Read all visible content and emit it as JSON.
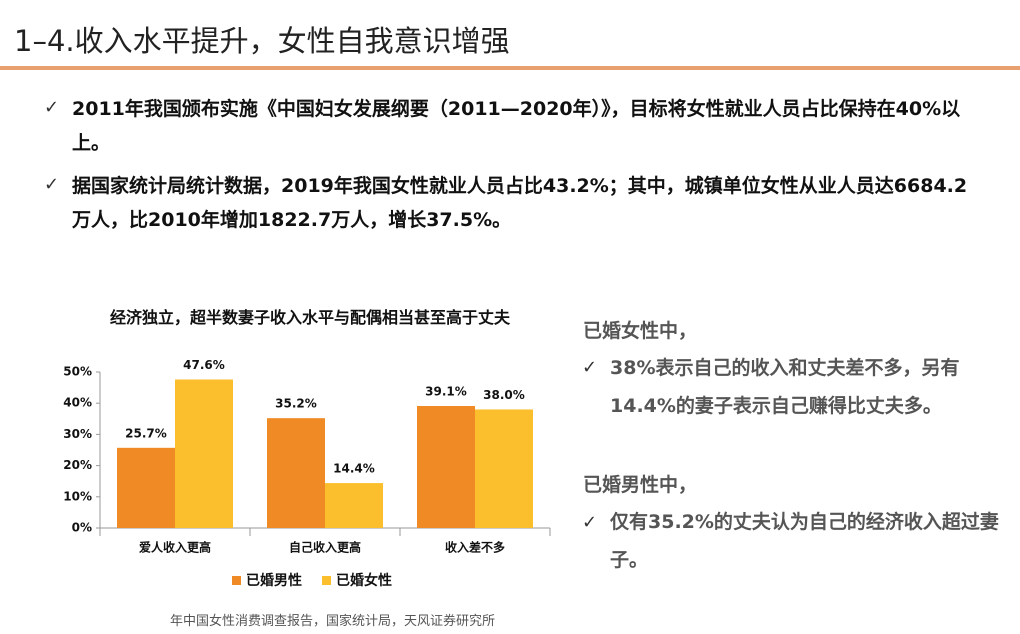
{
  "header": {
    "title": "1–4.收入水平提升，女性自我意识增强"
  },
  "bullets": [
    "2011年我国颁布实施《中国妇女发展纲要（2011—2020年）》，目标将女性就业人员占比保持在40%以上。",
    "据国家统计局统计数据，2019年我国女性就业人员占比43.2%；其中，城镇单位女性从业人员达6684.2万人，比2010年增加1822.7万人，增长37.5%。"
  ],
  "chart_data": {
    "type": "bar",
    "title": "经济独立，超半数妻子收入水平与配偶相当甚至高于丈夫",
    "categories": [
      "爱人收入更高",
      "自己收入更高",
      "收入差不多"
    ],
    "series": [
      {
        "name": "已婚男性",
        "color": "#f08a24",
        "values": [
          25.7,
          35.2,
          39.1
        ],
        "value_labels": [
          "25.7%",
          "35.2%",
          "39.1%"
        ]
      },
      {
        "name": "已婚女性",
        "color": "#fbbf2e",
        "values": [
          47.6,
          14.4,
          38.0
        ],
        "value_labels": [
          "47.6%",
          "14.4%",
          "38.0%"
        ]
      }
    ],
    "ylim": [
      0,
      50
    ],
    "yticks": [
      {
        "value": 0,
        "label": "0%"
      },
      {
        "value": 10,
        "label": "10%"
      },
      {
        "value": 20,
        "label": "20%"
      },
      {
        "value": 30,
        "label": "30%"
      },
      {
        "value": 40,
        "label": "40%"
      },
      {
        "value": 50,
        "label": "50%"
      }
    ],
    "grid": false,
    "legend": "bottom"
  },
  "notes": [
    {
      "heading": "已婚女性中，",
      "text": "38%表示自己的收入和丈夫差不多，另有14.4%的妻子表示自己赚得比丈夫多。"
    },
    {
      "heading": "已婚男性中，",
      "text": "仅有35.2%的丈夫认为自己的经济收入超过妻子。"
    }
  ],
  "source": "年中国女性消费调查报告，国家统计局，天风证券研究所"
}
